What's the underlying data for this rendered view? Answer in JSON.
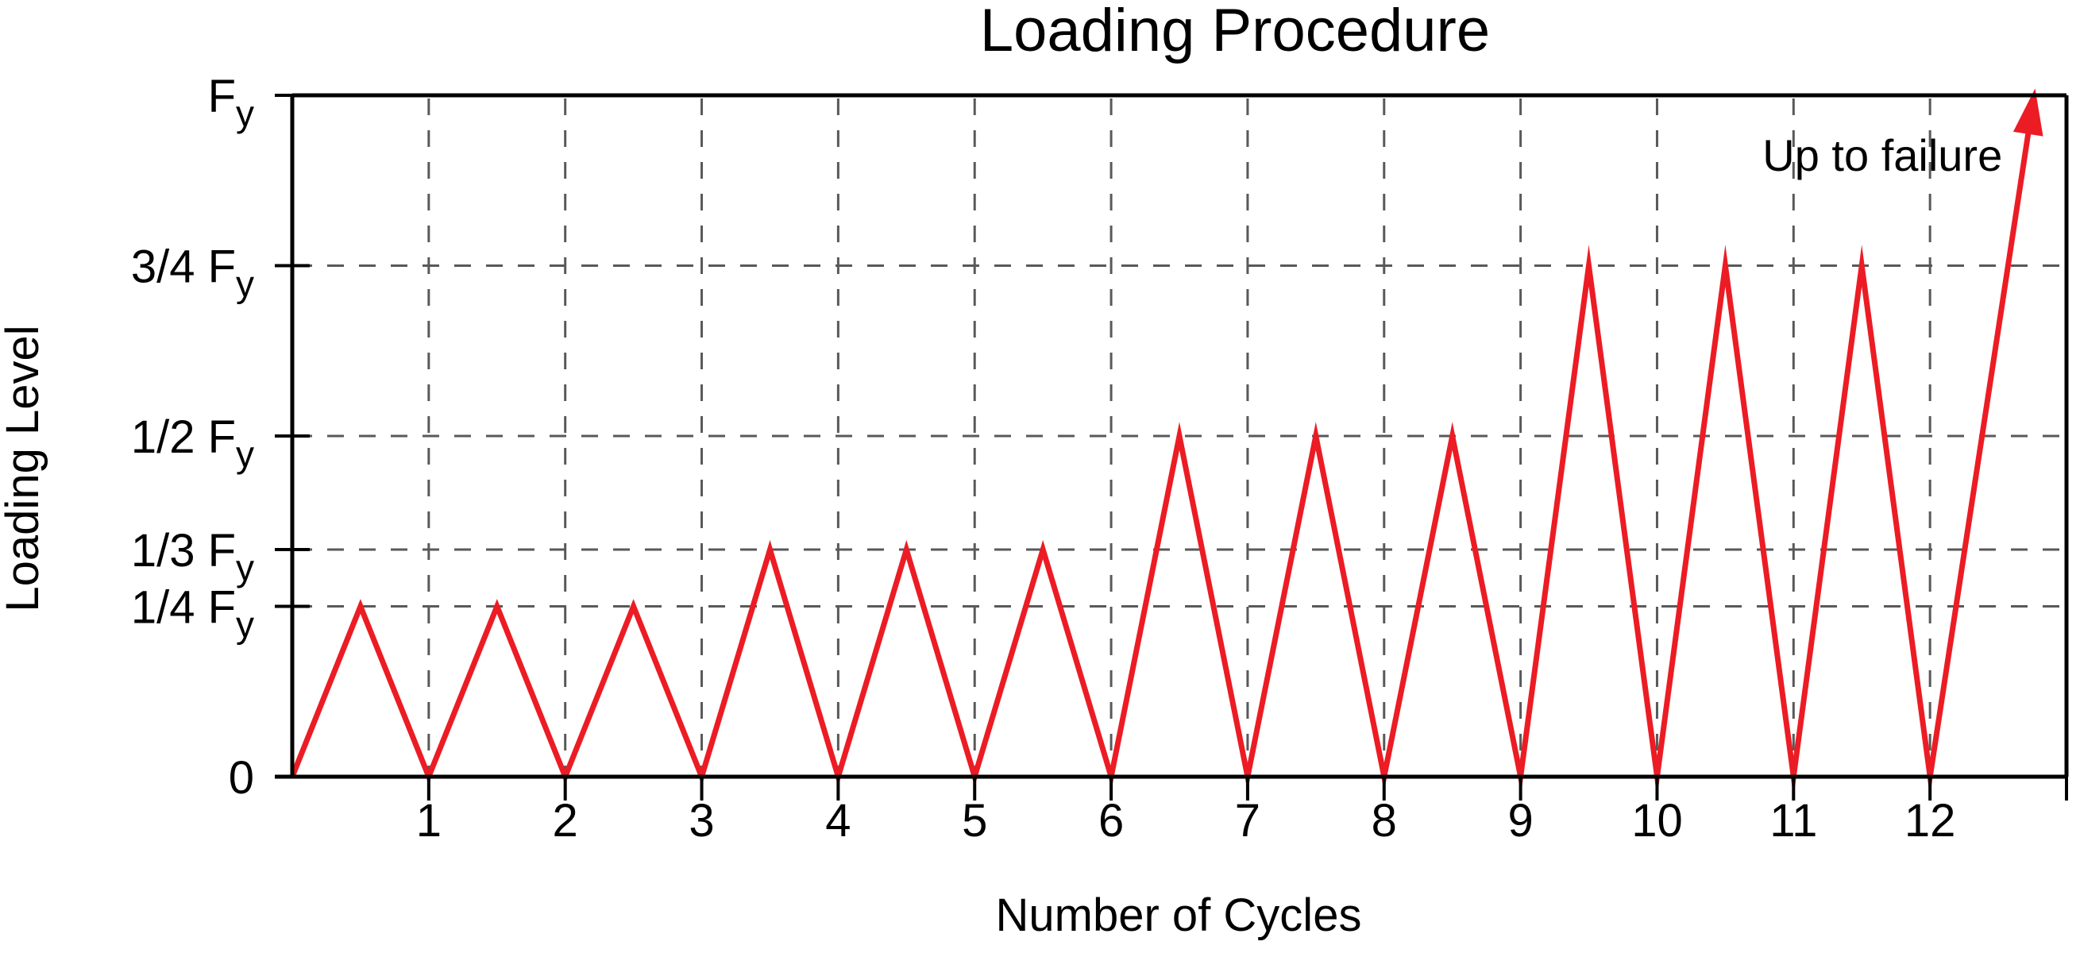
{
  "chart_data": {
    "type": "line",
    "title": "Loading Procedure",
    "xlabel": "Number of Cycles",
    "ylabel": "Loading Level",
    "xlim": [
      0,
      13
    ],
    "ylim": [
      0,
      1
    ],
    "grid": {
      "style": "dashed",
      "horizontal_at": [
        0.25,
        0.3333,
        0.5,
        0.75
      ],
      "vertical_at": [
        1,
        2,
        3,
        4,
        5,
        6,
        7,
        8,
        9,
        10,
        11,
        12
      ]
    },
    "x_ticks": [
      1,
      2,
      3,
      4,
      5,
      6,
      7,
      8,
      9,
      10,
      11,
      12
    ],
    "x_axis_end_tick": 13,
    "y_ticks": [
      {
        "value": 0,
        "label": "0",
        "sub": ""
      },
      {
        "value": 0.25,
        "label": "1/4 F",
        "sub": "y"
      },
      {
        "value": 0.3333,
        "label": "1/3 F",
        "sub": "y"
      },
      {
        "value": 0.5,
        "label": "1/2 F",
        "sub": "y"
      },
      {
        "value": 0.75,
        "label": "3/4 F",
        "sub": "y"
      },
      {
        "value": 1,
        "label": "F",
        "sub": "y"
      }
    ],
    "series": [
      {
        "name": "loading-history",
        "color": "#ec1c24",
        "arrow_end": true,
        "points": [
          [
            0,
            0
          ],
          [
            0.5,
            0.25
          ],
          [
            1,
            0
          ],
          [
            1.5,
            0.25
          ],
          [
            2,
            0
          ],
          [
            2.5,
            0.25
          ],
          [
            3,
            0
          ],
          [
            3.5,
            0.3333
          ],
          [
            4,
            0
          ],
          [
            4.5,
            0.3333
          ],
          [
            5,
            0
          ],
          [
            5.5,
            0.3333
          ],
          [
            6,
            0
          ],
          [
            6.5,
            0.5
          ],
          [
            7,
            0
          ],
          [
            7.5,
            0.5
          ],
          [
            8,
            0
          ],
          [
            8.5,
            0.5
          ],
          [
            9,
            0
          ],
          [
            9.5,
            0.75
          ],
          [
            10,
            0
          ],
          [
            10.5,
            0.75
          ],
          [
            11,
            0
          ],
          [
            11.5,
            0.75
          ],
          [
            12,
            0
          ],
          [
            12.77,
            1.01
          ]
        ]
      }
    ],
    "annotation": {
      "text": "Up to failure",
      "cycle": 12.53,
      "level": 0.889,
      "anchor": "end"
    },
    "colors": {
      "series": "#ec1c24",
      "grid": "#595959",
      "axis": "#000000",
      "text": "#000000",
      "background": "#ffffff"
    }
  }
}
